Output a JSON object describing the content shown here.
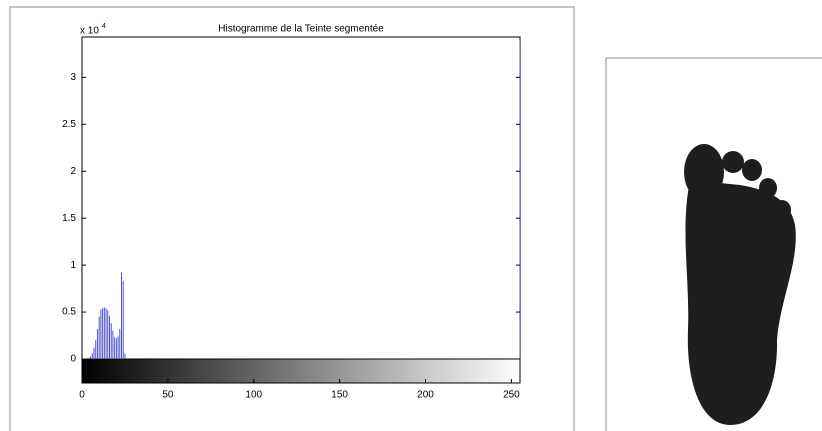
{
  "chart_data": {
    "type": "histogram",
    "title": "Histogramme de la Teinte segmentée",
    "y_multiplier": {
      "base": "x 10",
      "exponent": "4"
    },
    "x": [
      4,
      5,
      6,
      7,
      8,
      9,
      10,
      11,
      12,
      13,
      14,
      15,
      16,
      17,
      18,
      19,
      20,
      21,
      22,
      23,
      24,
      25,
      255
    ],
    "values": [
      100,
      300,
      600,
      1200,
      2000,
      3200,
      4500,
      5300,
      5400,
      5500,
      5400,
      5200,
      4600,
      3800,
      3000,
      2300,
      2200,
      2400,
      3200,
      9200,
      8300,
      600,
      34000
    ],
    "color": "#5050c8",
    "xlim": [
      0,
      255
    ],
    "xticks": [
      0,
      50,
      100,
      150,
      200,
      250
    ],
    "ylim": [
      0,
      34300
    ],
    "yticks": [
      {
        "value": 0,
        "label": "0"
      },
      {
        "value": 5000,
        "label": "0.5"
      },
      {
        "value": 10000,
        "label": "1"
      },
      {
        "value": 15000,
        "label": "1.5"
      },
      {
        "value": 20000,
        "label": "2"
      },
      {
        "value": 25000,
        "label": "2.5"
      },
      {
        "value": 30000,
        "label": "3"
      }
    ]
  }
}
